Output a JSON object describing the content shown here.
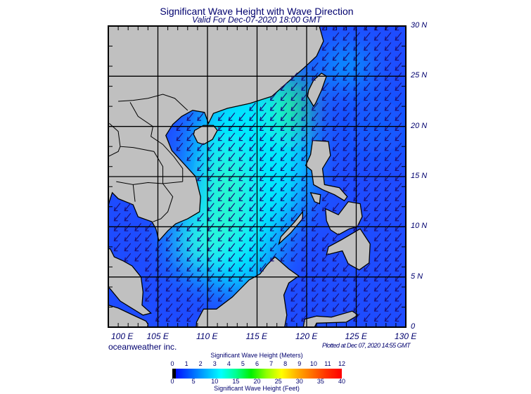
{
  "header": {
    "title": "Significant Wave Height with Wave Direction",
    "subtitle": "Valid For Dec-07-2020 18:00 GMT"
  },
  "map": {
    "extent": {
      "lon": [
        100,
        130
      ],
      "lat": [
        0,
        30
      ]
    },
    "grid_interval_deg": 5,
    "lat_labels": [
      "30 N",
      "25 N",
      "20 N",
      "15 N",
      "10 N",
      "5 N",
      "0"
    ],
    "lon_labels": [
      "100 E",
      "105 E",
      "110 E",
      "115 E",
      "120 E",
      "125 E",
      "130 E"
    ],
    "wave_direction": "toward southwest",
    "colors": {
      "land": "#c0c0c0",
      "sea_low": "#1e4cff",
      "sea_mid": "#00e8ff",
      "sea_high": "#20ff70",
      "arrow": "#1a107a",
      "grid": "#000000"
    }
  },
  "footer": {
    "credit": "oceanweather inc.",
    "plotted": "Plotted at Dec 07, 2020 14:55 GMT"
  },
  "colorbar": {
    "title_top": "Significant Wave Height (Meters)",
    "title_bottom": "Significant Wave Height (Feet)",
    "meters_ticks": [
      "0",
      "1",
      "2",
      "3",
      "4",
      "5",
      "6",
      "7",
      "8",
      "9",
      "10",
      "11",
      "12"
    ],
    "feet_ticks": [
      "0",
      "5",
      "10",
      "15",
      "20",
      "25",
      "30",
      "35",
      "40"
    ],
    "colors": [
      "#000000",
      "#0010ff",
      "#0060ff",
      "#00b0ff",
      "#00ffff",
      "#00ff90",
      "#00f000",
      "#90ff00",
      "#ffff00",
      "#ffb000",
      "#ff7000",
      "#ff3000",
      "#ff0000"
    ]
  }
}
